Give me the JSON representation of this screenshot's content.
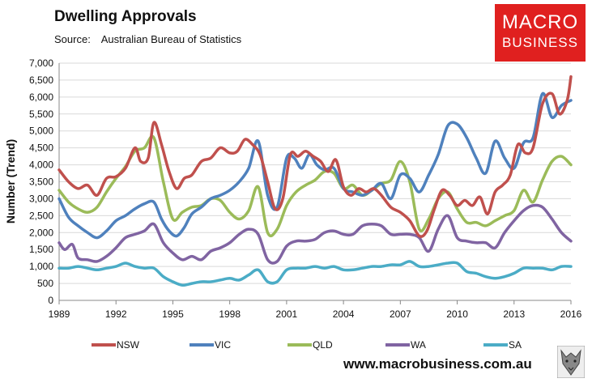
{
  "header": {
    "title": "Dwelling Approvals",
    "source_label": "Source:",
    "source_value": "Australian Bureau of Statistics"
  },
  "logo": {
    "line1": "MACRO",
    "line2": "BUSINESS",
    "color": "#e0201f"
  },
  "footer": {
    "url": "www.macrobusiness.com.au"
  },
  "chart_data": {
    "type": "line",
    "title": "Dwelling Approvals",
    "xlabel": "",
    "ylabel": "Number (Trend)",
    "xlim": [
      1989,
      2016
    ],
    "ylim": [
      0,
      7000
    ],
    "x_ticks": [
      1989,
      1992,
      1995,
      1998,
      2001,
      2004,
      2007,
      2010,
      2013,
      2016
    ],
    "x_tick_labels": [
      "1989",
      "1992",
      "1995",
      "1998",
      "2001",
      "2004",
      "2007",
      "2010",
      "2013",
      "2016"
    ],
    "y_ticks": [
      0,
      500,
      1000,
      1500,
      2000,
      2500,
      3000,
      3500,
      4000,
      4500,
      5000,
      5500,
      6000,
      6500,
      7000
    ],
    "y_tick_labels": [
      "0",
      "500",
      "1,000",
      "1,500",
      "2,000",
      "2,500",
      "3,000",
      "3,500",
      "4,000",
      "4,500",
      "5,000",
      "5,500",
      "6,000",
      "6,500",
      "7,000"
    ],
    "grid": "horizontal",
    "legend_position": "bottom",
    "series": [
      {
        "name": "NSW",
        "color": "#c0504d",
        "points": [
          [
            1989,
            3850
          ],
          [
            1989.5,
            3500
          ],
          [
            1990,
            3300
          ],
          [
            1990.5,
            3400
          ],
          [
            1991,
            3100
          ],
          [
            1991.5,
            3600
          ],
          [
            1992,
            3650
          ],
          [
            1992.5,
            3900
          ],
          [
            1993,
            4500
          ],
          [
            1993.3,
            4100
          ],
          [
            1993.7,
            4200
          ],
          [
            1994,
            5250
          ],
          [
            1994.4,
            4600
          ],
          [
            1994.8,
            3800
          ],
          [
            1995.2,
            3300
          ],
          [
            1995.6,
            3600
          ],
          [
            1996,
            3700
          ],
          [
            1996.5,
            4100
          ],
          [
            1997,
            4200
          ],
          [
            1997.5,
            4500
          ],
          [
            1998,
            4350
          ],
          [
            1998.4,
            4400
          ],
          [
            1998.8,
            4750
          ],
          [
            1999.2,
            4600
          ],
          [
            1999.6,
            4300
          ],
          [
            2000,
            3500
          ],
          [
            2000.4,
            2700
          ],
          [
            2000.8,
            3000
          ],
          [
            2001.2,
            4300
          ],
          [
            2001.6,
            4250
          ],
          [
            2002,
            4400
          ],
          [
            2002.4,
            4250
          ],
          [
            2002.8,
            4100
          ],
          [
            2003.2,
            3800
          ],
          [
            2003.6,
            4150
          ],
          [
            2004,
            3350
          ],
          [
            2004.4,
            3100
          ],
          [
            2004.8,
            3300
          ],
          [
            2005.2,
            3200
          ],
          [
            2005.6,
            3300
          ],
          [
            2006,
            3100
          ],
          [
            2006.5,
            2750
          ],
          [
            2007,
            2600
          ],
          [
            2007.5,
            2350
          ],
          [
            2008,
            1900
          ],
          [
            2008.4,
            2050
          ],
          [
            2008.8,
            2700
          ],
          [
            2009.2,
            3250
          ],
          [
            2009.6,
            3100
          ],
          [
            2010,
            2800
          ],
          [
            2010.4,
            2950
          ],
          [
            2010.8,
            2800
          ],
          [
            2011.2,
            3050
          ],
          [
            2011.6,
            2550
          ],
          [
            2012,
            3200
          ],
          [
            2012.4,
            3400
          ],
          [
            2012.8,
            3700
          ],
          [
            2013.2,
            4600
          ],
          [
            2013.6,
            4350
          ],
          [
            2014,
            4500
          ],
          [
            2014.5,
            5800
          ],
          [
            2015,
            6100
          ],
          [
            2015.4,
            5500
          ],
          [
            2015.8,
            5900
          ],
          [
            2016,
            6600
          ]
        ]
      },
      {
        "name": "VIC",
        "color": "#4f81bd",
        "points": [
          [
            1989,
            3000
          ],
          [
            1989.5,
            2450
          ],
          [
            1990,
            2200
          ],
          [
            1990.5,
            2000
          ],
          [
            1991,
            1850
          ],
          [
            1991.5,
            2050
          ],
          [
            1992,
            2350
          ],
          [
            1992.5,
            2500
          ],
          [
            1993,
            2700
          ],
          [
            1993.5,
            2850
          ],
          [
            1994,
            2900
          ],
          [
            1994.4,
            2400
          ],
          [
            1994.8,
            2050
          ],
          [
            1995.2,
            1900
          ],
          [
            1995.6,
            2150
          ],
          [
            1996,
            2550
          ],
          [
            1996.5,
            2750
          ],
          [
            1997,
            3000
          ],
          [
            1997.5,
            3100
          ],
          [
            1998,
            3250
          ],
          [
            1998.5,
            3500
          ],
          [
            1999,
            3900
          ],
          [
            1999.5,
            4700
          ],
          [
            2000,
            3100
          ],
          [
            2000.5,
            2750
          ],
          [
            2001,
            4200
          ],
          [
            2001.4,
            4200
          ],
          [
            2001.8,
            3900
          ],
          [
            2002.2,
            4300
          ],
          [
            2002.6,
            4000
          ],
          [
            2003,
            3850
          ],
          [
            2003.5,
            3900
          ],
          [
            2004,
            3300
          ],
          [
            2004.5,
            3200
          ],
          [
            2005,
            3100
          ],
          [
            2005.5,
            3250
          ],
          [
            2006,
            3450
          ],
          [
            2006.5,
            3000
          ],
          [
            2007,
            3700
          ],
          [
            2007.5,
            3600
          ],
          [
            2008,
            3200
          ],
          [
            2008.5,
            3700
          ],
          [
            2009,
            4300
          ],
          [
            2009.5,
            5150
          ],
          [
            2010,
            5200
          ],
          [
            2010.5,
            4800
          ],
          [
            2011,
            4200
          ],
          [
            2011.5,
            3750
          ],
          [
            2012,
            4700
          ],
          [
            2012.5,
            4200
          ],
          [
            2013,
            3900
          ],
          [
            2013.5,
            4650
          ],
          [
            2014,
            4800
          ],
          [
            2014.5,
            6100
          ],
          [
            2015,
            5400
          ],
          [
            2015.5,
            5750
          ],
          [
            2016,
            5900
          ]
        ]
      },
      {
        "name": "QLD",
        "color": "#9bbb59",
        "points": [
          [
            1989,
            3250
          ],
          [
            1989.5,
            2900
          ],
          [
            1990,
            2700
          ],
          [
            1990.5,
            2600
          ],
          [
            1991,
            2750
          ],
          [
            1991.5,
            3200
          ],
          [
            1992,
            3600
          ],
          [
            1992.5,
            3950
          ],
          [
            1993,
            4400
          ],
          [
            1993.5,
            4500
          ],
          [
            1994,
            4800
          ],
          [
            1994.5,
            3500
          ],
          [
            1995,
            2400
          ],
          [
            1995.5,
            2600
          ],
          [
            1996,
            2750
          ],
          [
            1996.5,
            2800
          ],
          [
            1997,
            3000
          ],
          [
            1997.5,
            2950
          ],
          [
            1998,
            2600
          ],
          [
            1998.5,
            2400
          ],
          [
            1999,
            2650
          ],
          [
            1999.5,
            3350
          ],
          [
            2000,
            2000
          ],
          [
            2000.5,
            2100
          ],
          [
            2001,
            2800
          ],
          [
            2001.5,
            3200
          ],
          [
            2002,
            3400
          ],
          [
            2002.5,
            3550
          ],
          [
            2003,
            3800
          ],
          [
            2003.5,
            3750
          ],
          [
            2004,
            3300
          ],
          [
            2004.5,
            3400
          ],
          [
            2005,
            3100
          ],
          [
            2005.5,
            3250
          ],
          [
            2006,
            3450
          ],
          [
            2006.5,
            3550
          ],
          [
            2007,
            4100
          ],
          [
            2007.5,
            3500
          ],
          [
            2008,
            2100
          ],
          [
            2008.5,
            2400
          ],
          [
            2009,
            3000
          ],
          [
            2009.5,
            3200
          ],
          [
            2010,
            2700
          ],
          [
            2010.5,
            2300
          ],
          [
            2011,
            2300
          ],
          [
            2011.5,
            2200
          ],
          [
            2012,
            2350
          ],
          [
            2012.5,
            2500
          ],
          [
            2013,
            2650
          ],
          [
            2013.5,
            3250
          ],
          [
            2014,
            2900
          ],
          [
            2014.5,
            3550
          ],
          [
            2015,
            4100
          ],
          [
            2015.5,
            4250
          ],
          [
            2016,
            4000
          ]
        ]
      },
      {
        "name": "WA",
        "color": "#8064a2",
        "points": [
          [
            1989,
            1700
          ],
          [
            1989.3,
            1500
          ],
          [
            1989.7,
            1650
          ],
          [
            1990,
            1250
          ],
          [
            1990.5,
            1200
          ],
          [
            1991,
            1150
          ],
          [
            1991.5,
            1300
          ],
          [
            1992,
            1550
          ],
          [
            1992.5,
            1850
          ],
          [
            1993,
            1950
          ],
          [
            1993.5,
            2050
          ],
          [
            1994,
            2250
          ],
          [
            1994.5,
            1700
          ],
          [
            1995,
            1400
          ],
          [
            1995.5,
            1200
          ],
          [
            1996,
            1300
          ],
          [
            1996.5,
            1200
          ],
          [
            1997,
            1450
          ],
          [
            1997.5,
            1550
          ],
          [
            1998,
            1700
          ],
          [
            1998.5,
            1950
          ],
          [
            1999,
            2100
          ],
          [
            1999.5,
            1950
          ],
          [
            2000,
            1200
          ],
          [
            2000.5,
            1150
          ],
          [
            2001,
            1600
          ],
          [
            2001.5,
            1750
          ],
          [
            2002,
            1750
          ],
          [
            2002.5,
            1800
          ],
          [
            2003,
            2000
          ],
          [
            2003.5,
            2050
          ],
          [
            2004,
            1950
          ],
          [
            2004.5,
            1950
          ],
          [
            2005,
            2200
          ],
          [
            2005.5,
            2250
          ],
          [
            2006,
            2200
          ],
          [
            2006.5,
            1950
          ],
          [
            2007,
            1950
          ],
          [
            2007.5,
            1950
          ],
          [
            2008,
            1850
          ],
          [
            2008.5,
            1450
          ],
          [
            2009,
            2100
          ],
          [
            2009.5,
            2500
          ],
          [
            2010,
            1850
          ],
          [
            2010.5,
            1750
          ],
          [
            2011,
            1700
          ],
          [
            2011.5,
            1700
          ],
          [
            2012,
            1550
          ],
          [
            2012.5,
            2000
          ],
          [
            2013,
            2350
          ],
          [
            2013.5,
            2650
          ],
          [
            2014,
            2800
          ],
          [
            2014.5,
            2750
          ],
          [
            2015,
            2400
          ],
          [
            2015.5,
            2000
          ],
          [
            2016,
            1750
          ]
        ]
      },
      {
        "name": "SA",
        "color": "#4bacc6",
        "points": [
          [
            1989,
            950
          ],
          [
            1989.5,
            950
          ],
          [
            1990,
            1000
          ],
          [
            1990.5,
            950
          ],
          [
            1991,
            900
          ],
          [
            1991.5,
            950
          ],
          [
            1992,
            1000
          ],
          [
            1992.5,
            1100
          ],
          [
            1993,
            1000
          ],
          [
            1993.5,
            950
          ],
          [
            1994,
            950
          ],
          [
            1994.5,
            700
          ],
          [
            1995,
            550
          ],
          [
            1995.5,
            450
          ],
          [
            1996,
            500
          ],
          [
            1996.5,
            550
          ],
          [
            1997,
            550
          ],
          [
            1997.5,
            600
          ],
          [
            1998,
            650
          ],
          [
            1998.5,
            600
          ],
          [
            1999,
            750
          ],
          [
            1999.5,
            900
          ],
          [
            2000,
            550
          ],
          [
            2000.5,
            550
          ],
          [
            2001,
            900
          ],
          [
            2001.5,
            950
          ],
          [
            2002,
            950
          ],
          [
            2002.5,
            1000
          ],
          [
            2003,
            950
          ],
          [
            2003.5,
            1000
          ],
          [
            2004,
            900
          ],
          [
            2004.5,
            900
          ],
          [
            2005,
            950
          ],
          [
            2005.5,
            1000
          ],
          [
            2006,
            1000
          ],
          [
            2006.5,
            1050
          ],
          [
            2007,
            1050
          ],
          [
            2007.5,
            1150
          ],
          [
            2008,
            1000
          ],
          [
            2008.5,
            1000
          ],
          [
            2009,
            1050
          ],
          [
            2009.5,
            1100
          ],
          [
            2010,
            1100
          ],
          [
            2010.5,
            850
          ],
          [
            2011,
            800
          ],
          [
            2011.5,
            700
          ],
          [
            2012,
            650
          ],
          [
            2012.5,
            700
          ],
          [
            2013,
            800
          ],
          [
            2013.5,
            950
          ],
          [
            2014,
            950
          ],
          [
            2014.5,
            950
          ],
          [
            2015,
            900
          ],
          [
            2015.5,
            1000
          ],
          [
            2016,
            1000
          ]
        ]
      }
    ]
  }
}
